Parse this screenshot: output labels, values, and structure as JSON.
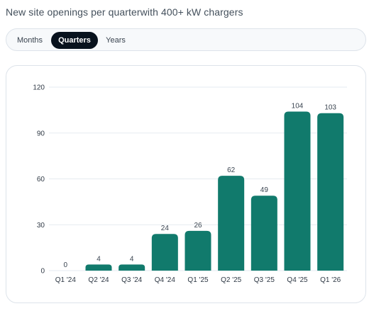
{
  "header": {
    "subtitle": "New site openings per quarterwith 400+ kW chargers"
  },
  "tabs": {
    "items": [
      {
        "label": "Months",
        "active": false
      },
      {
        "label": "Quarters",
        "active": true
      },
      {
        "label": "Years",
        "active": false
      }
    ]
  },
  "colors": {
    "bar": "#117a6c",
    "grid": "#e6ebf0",
    "axis_text": "#2f3945",
    "active_tab_bg": "#08121d"
  },
  "chart_data": {
    "type": "bar",
    "categories": [
      "Q1 '24",
      "Q2 '24",
      "Q3 '24",
      "Q4 '24",
      "Q1 '25",
      "Q2 '25",
      "Q3 '25",
      "Q4 '25",
      "Q1 '26"
    ],
    "values": [
      0,
      4,
      4,
      24,
      26,
      62,
      49,
      104,
      103
    ],
    "value_labels": [
      "0",
      "4",
      "4",
      "24",
      "26",
      "62",
      "49",
      "104",
      "103"
    ],
    "y_ticks": [
      0,
      30,
      60,
      90,
      120
    ],
    "y_tick_labels": [
      "0",
      "30",
      "60",
      "90",
      "120"
    ],
    "ylim": [
      0,
      120
    ],
    "grid": true
  }
}
